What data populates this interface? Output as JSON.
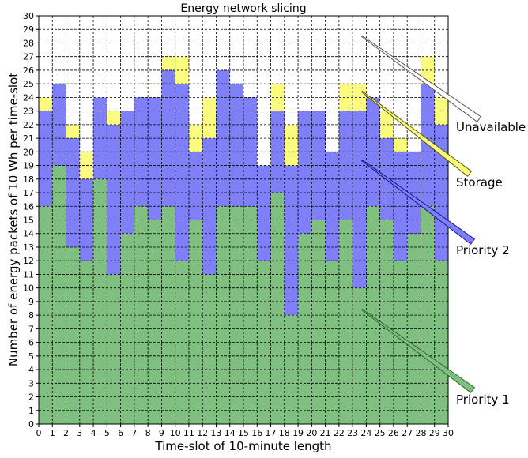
{
  "chart_data": {
    "type": "bar",
    "stacked": true,
    "title": "Energy network slicing",
    "xlabel": "Time-slot of 10-minute length",
    "ylabel": "Number of energy packets of 10 Wh per time-slot",
    "xlim": [
      0,
      30
    ],
    "ylim": [
      0,
      30
    ],
    "xticks": [
      0,
      1,
      2,
      3,
      4,
      5,
      6,
      7,
      8,
      9,
      10,
      11,
      12,
      13,
      14,
      15,
      16,
      17,
      18,
      19,
      20,
      21,
      22,
      23,
      24,
      25,
      26,
      27,
      28,
      29,
      30
    ],
    "yticks": [
      0,
      1,
      2,
      3,
      4,
      5,
      6,
      7,
      8,
      9,
      10,
      11,
      12,
      13,
      14,
      15,
      16,
      17,
      18,
      19,
      20,
      21,
      22,
      23,
      24,
      25,
      26,
      27,
      28,
      29,
      30
    ],
    "grid": true,
    "x": [
      0,
      1,
      2,
      3,
      4,
      5,
      6,
      7,
      8,
      9,
      10,
      11,
      12,
      13,
      14,
      15,
      16,
      17,
      18,
      19,
      20,
      21,
      22,
      23,
      24,
      25,
      26,
      27,
      28,
      29
    ],
    "series": [
      {
        "name": "Priority 1",
        "color": "#7fbf7f",
        "values": [
          16,
          19,
          13,
          12,
          18,
          11,
          14,
          16,
          15,
          16,
          12,
          15,
          11,
          16,
          16,
          16,
          12,
          17,
          8,
          14,
          15,
          12,
          15,
          10,
          16,
          15,
          12,
          14,
          16,
          12
        ]
      },
      {
        "name": "Priority 2",
        "color": "#7f7ff7",
        "values": [
          7,
          6,
          8,
          6,
          6,
          11,
          9,
          8,
          9,
          10,
          13,
          5,
          10,
          10,
          9,
          8,
          7,
          6,
          11,
          9,
          8,
          8,
          8,
          13,
          8,
          6,
          8,
          6,
          9,
          10
        ]
      },
      {
        "name": "Storage",
        "color": "#fbfb7f",
        "values": [
          1,
          0,
          1,
          2,
          0,
          1,
          0,
          0,
          0,
          1,
          2,
          2,
          3,
          0,
          0,
          0,
          0,
          2,
          3,
          0,
          0,
          0,
          2,
          2,
          0,
          2,
          1,
          0,
          2,
          2
        ]
      },
      {
        "name": "Unavailable",
        "color": "#ffffff",
        "values": [
          6,
          5,
          8,
          10,
          6,
          7,
          7,
          6,
          6,
          3,
          3,
          8,
          6,
          4,
          5,
          6,
          11,
          5,
          8,
          7,
          7,
          10,
          5,
          5,
          6,
          7,
          9,
          10,
          3,
          6
        ]
      }
    ],
    "legend_placement": "right, annotated with diagonal pointer lines"
  }
}
